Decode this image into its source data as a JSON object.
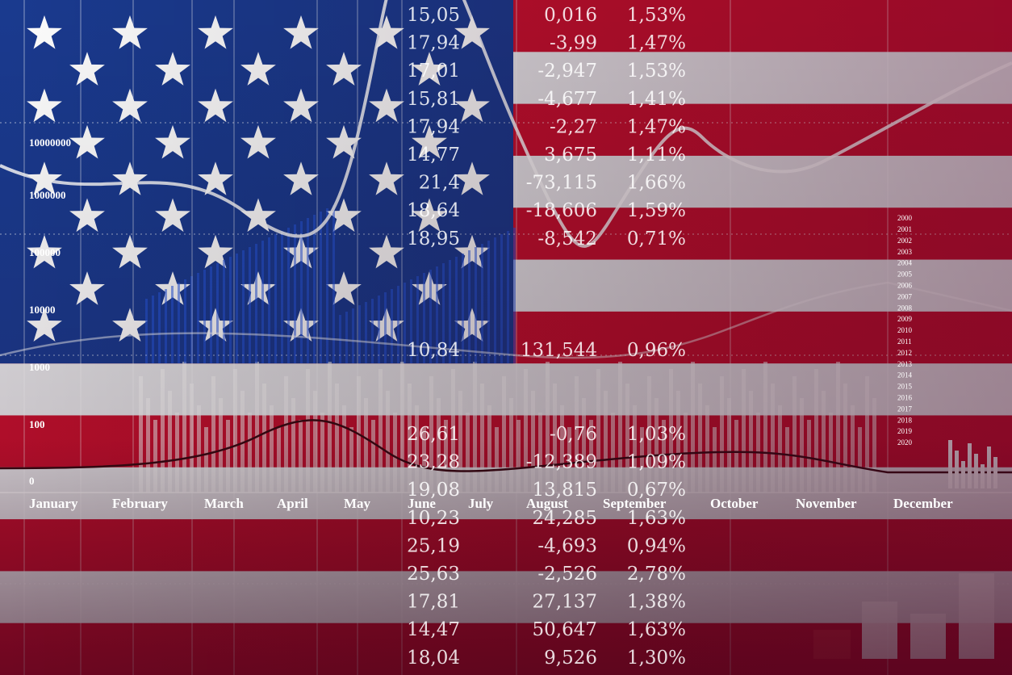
{
  "axis_labels": [
    "10000000",
    "1000000",
    "100000",
    "10000",
    "1000",
    "100",
    "0"
  ],
  "months": [
    "January",
    "February",
    "March",
    "April",
    "May",
    "June",
    "July",
    "August",
    "September",
    "October",
    "November",
    "December"
  ],
  "years": [
    "2000",
    "2001",
    "2002",
    "2003",
    "2004",
    "2005",
    "2006",
    "2007",
    "2008",
    "2009",
    "2010",
    "2011",
    "2012",
    "2013",
    "2014",
    "2015",
    "2016",
    "2017",
    "2018",
    "2019",
    "2020"
  ],
  "table": {
    "rows": [
      [
        "15,05",
        "0,016",
        "1,53%"
      ],
      [
        "17,94",
        "-3,99",
        "1,47%"
      ],
      [
        "17,01",
        "-2,947",
        "1,53%"
      ],
      [
        "15,81",
        "-4,677",
        "1,41%"
      ],
      [
        "17,94",
        "-2,27",
        "1,47%"
      ],
      [
        "14,77",
        "3,675",
        "1,11%"
      ],
      [
        "21,4",
        "-73,115",
        "1,66%"
      ],
      [
        "18,64",
        "-18,606",
        "1,59%"
      ],
      [
        "18,95",
        "-8,542",
        "0,71%"
      ],
      [
        "10,84",
        "131,544",
        "0,96%"
      ],
      [
        "26,61",
        "-0,76",
        "1,03%"
      ],
      [
        "23,28",
        "-12,389",
        "1,09%"
      ],
      [
        "19,08",
        "13,815",
        "0,67%"
      ],
      [
        "10,23",
        "24,285",
        "1,63%"
      ],
      [
        "25,19",
        "-4,693",
        "0,94%"
      ],
      [
        "25,63",
        "-2,526",
        "2,78%"
      ],
      [
        "17,81",
        "27,137",
        "1,38%"
      ],
      [
        "14,47",
        "50,647",
        "1,63%"
      ],
      [
        "18,04",
        "9,526",
        "1,30%"
      ]
    ]
  }
}
